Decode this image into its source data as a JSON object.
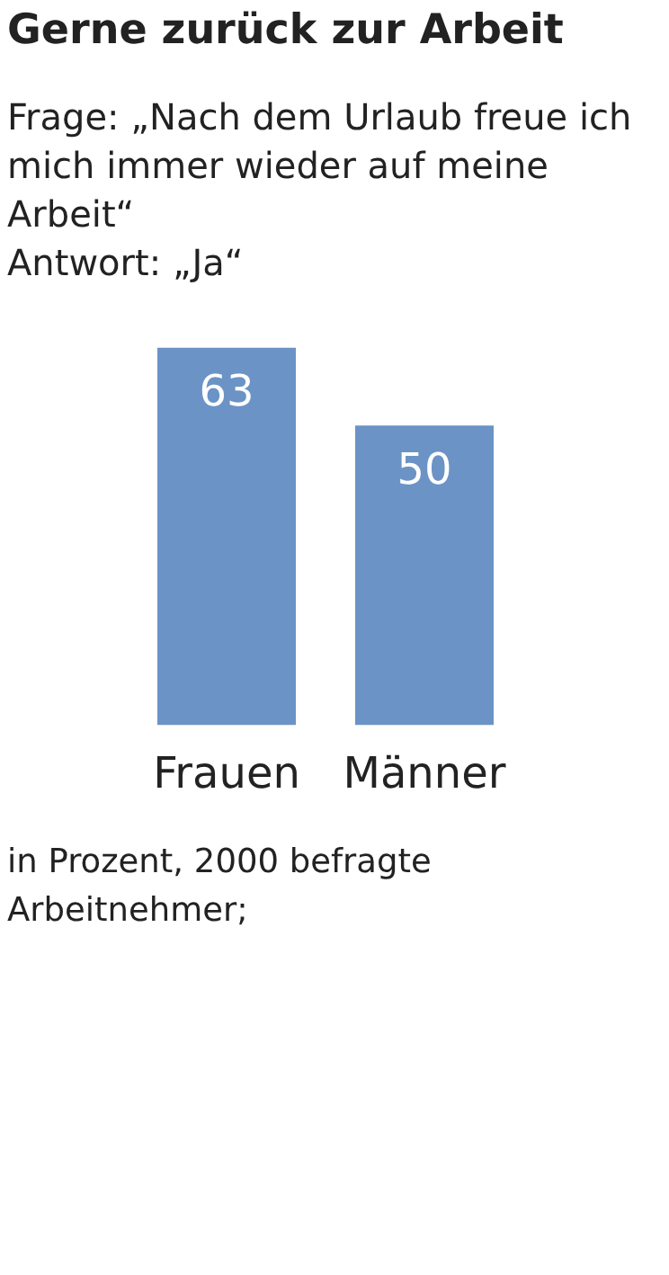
{
  "chart_data": {
    "type": "bar",
    "title": "Gerne zurück zur Arbeit",
    "subtitle": "Frage: „Nach dem Urlaub freue ich mich immer wieder auf meine Arbeit“\nAntwort: „Ja“",
    "categories": [
      "Frauen",
      "Männer"
    ],
    "values": [
      63,
      50
    ],
    "color": "#6b93c6",
    "data_labels": true,
    "annotations": [
      "in Prozent, 2000 befragte Arbeitnehmer;"
    ]
  }
}
